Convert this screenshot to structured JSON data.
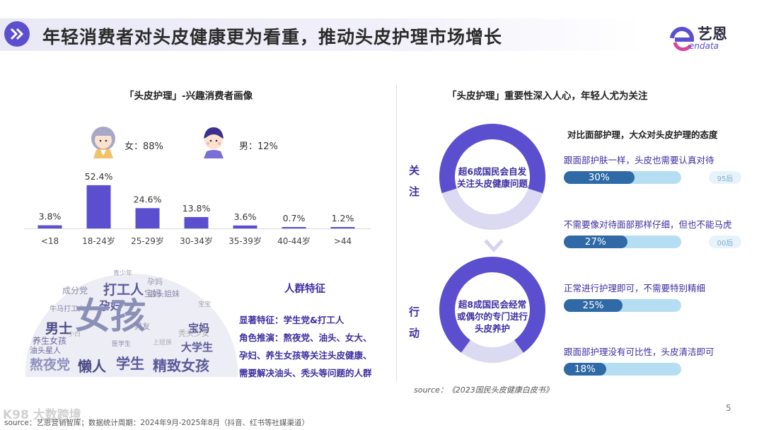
{
  "header": {
    "title": "年轻消费者对头皮健康更为看重，推动头皮护理市场增长",
    "logo_cn": "艺恩",
    "logo_en": "endata"
  },
  "left": {
    "section_title": "「头皮护理」-兴趣消费者画像",
    "female_label": "女：88%",
    "male_label": "男：12%",
    "crowd_title": "人群特征",
    "crowd_lines": [
      "显著特征：学生党&打工人",
      "角色推演：熬夜党、油头、女大、",
      "孕妇、养生女孩等关注头皮健康、",
      "需要解决油头、秃头等问题的人群"
    ],
    "word_cloud": [
      "青少年",
      "孕妈",
      "成分党",
      "打工人",
      "宝妈",
      "油头姐妹",
      "孕妇",
      "牛马打工人",
      "女孩",
      "男士",
      "男友",
      "秃头少女",
      "养生女孩",
      "宝妈",
      "大学生",
      "油头星人",
      "医学生",
      "熬夜党",
      "懒人",
      "学生",
      "精致女孩",
      "小白",
      "上班族",
      "宝宝"
    ]
  },
  "chart_data": {
    "type": "bar",
    "categories": [
      "<18",
      "18-24岁",
      "25-29岁",
      "30-34岁",
      "35-39岁",
      "40-44岁",
      ">44"
    ],
    "values": [
      3.8,
      52.4,
      24.6,
      13.8,
      3.6,
      0.7,
      1.2
    ],
    "value_labels": [
      "3.8%",
      "52.4%",
      "24.6%",
      "13.8%",
      "3.6%",
      "0.7%",
      "1.2%"
    ],
    "ylim": [
      0,
      60
    ],
    "bar_color": "#5b4fcf",
    "grid": false
  },
  "right": {
    "section_title": "「头皮护理」重要性深入人心，年轻人尤为关注",
    "label_top": [
      "关",
      "注"
    ],
    "label_bottom": [
      "行",
      "动"
    ],
    "donut_top": {
      "fraction": 0.6,
      "lines": [
        "超6成国民会自发",
        "关注头皮健康问题"
      ]
    },
    "donut_bottom": {
      "fraction": 0.8,
      "lines": [
        "超8成国民会经常",
        "或偶尔的专门进行",
        "头皮养护"
      ]
    },
    "attitude_title": "对比面部护理，大众对头皮护理的态度",
    "attitudes": [
      {
        "text": "跟面部护肤一样，头皮也需要认真对待",
        "value": 30,
        "label": "30%",
        "tag": "95后"
      },
      {
        "text": "不需要像对待面部那样仔细，但也不能马虎",
        "value": 27,
        "label": "27%",
        "tag": "00后"
      },
      {
        "text": "正常进行护理即可，不需要特别精细",
        "value": 25,
        "label": "25%",
        "tag": ""
      },
      {
        "text": "跟面部护理没有可比性，头皮清洁即可",
        "value": 18,
        "label": "18%",
        "tag": ""
      }
    ],
    "source": "source：《2023国民头皮健康白皮书》"
  },
  "footer": {
    "source": "source：艺恩营销智库；数据统计周期：2024年9月-2025年8月（抖音、红书等社媒渠道）",
    "watermark": "K98 大数跨境",
    "page": "5"
  },
  "colors": {
    "accent": "#5b4fcf",
    "donut_track": "#dcdaf3",
    "bar_fill": "#2f6aa6",
    "bar_bg": "#b6def2"
  }
}
